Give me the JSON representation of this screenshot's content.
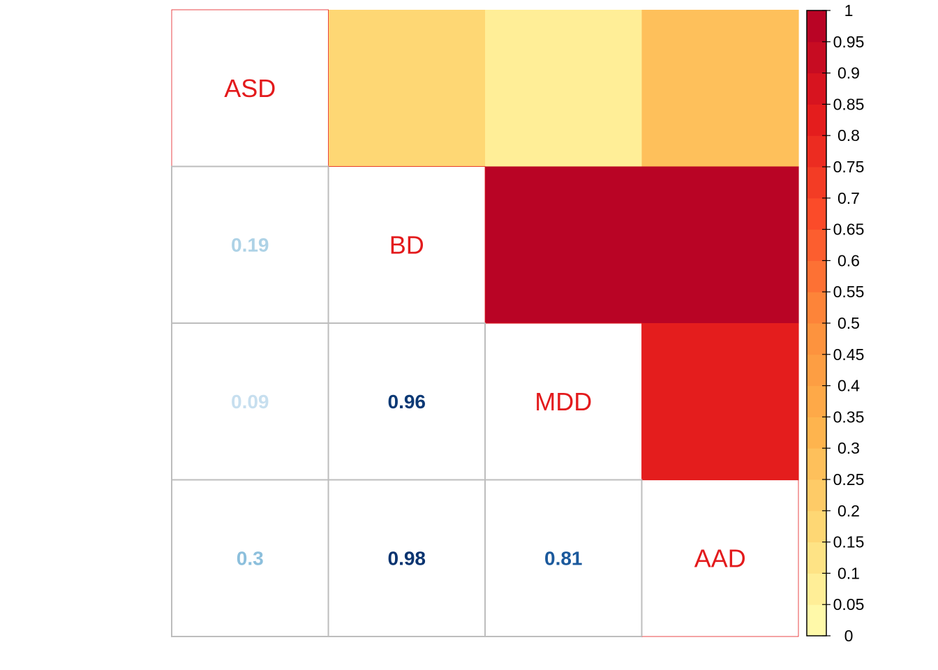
{
  "chart_data": {
    "type": "heatmap",
    "variables": [
      "ASD",
      "BD",
      "MDD",
      "AAD"
    ],
    "matrix": [
      [
        1,
        0.19,
        0.09,
        0.3
      ],
      [
        0.19,
        1,
        0.96,
        0.98
      ],
      [
        0.09,
        0.96,
        1,
        0.81
      ],
      [
        0.3,
        0.98,
        0.81,
        1
      ]
    ],
    "lower_text": [
      {
        "row": 1,
        "col": 0,
        "label": "0.19",
        "value": 0.19
      },
      {
        "row": 2,
        "col": 0,
        "label": "0.09",
        "value": 0.09
      },
      {
        "row": 2,
        "col": 1,
        "label": "0.96",
        "value": 0.96
      },
      {
        "row": 3,
        "col": 0,
        "label": "0.3",
        "value": 0.3
      },
      {
        "row": 3,
        "col": 1,
        "label": "0.98",
        "value": 0.98
      },
      {
        "row": 3,
        "col": 2,
        "label": "0.81",
        "value": 0.81
      }
    ],
    "upper_style": "color",
    "lower_style": "number",
    "diagonal_label_color": "#e31a1c",
    "colorbar": {
      "range": [
        0,
        1
      ],
      "step": 0.05,
      "ticks": [
        "0",
        "0.05",
        "0.1",
        "0.15",
        "0.2",
        "0.25",
        "0.3",
        "0.35",
        "0.4",
        "0.45",
        "0.5",
        "0.55",
        "0.6",
        "0.65",
        "0.7",
        "0.75",
        "0.8",
        "0.85",
        "0.9",
        "0.95",
        "1"
      ],
      "placement": "right",
      "palette": [
        "#ffffb2",
        "#fed976",
        "#feb24c",
        "#fd8d3c",
        "#fc4e2a",
        "#e31a1c",
        "#b10026"
      ]
    },
    "number_palette": [
      "#deebf7",
      "#9ecae1",
      "#4292c6",
      "#2166ac",
      "#08306b"
    ],
    "grid": true
  }
}
